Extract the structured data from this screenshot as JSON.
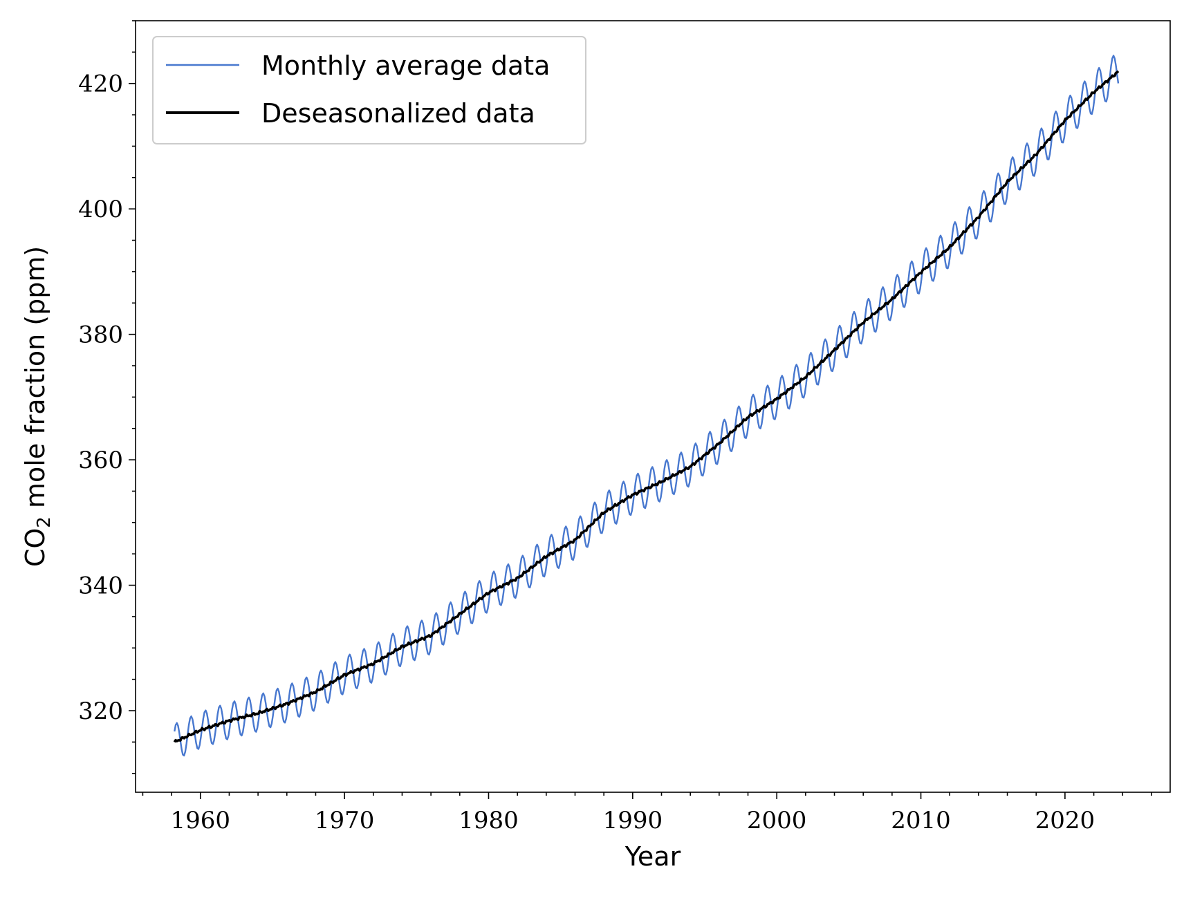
{
  "chart_data": {
    "type": "line",
    "xlabel": "Year",
    "ylabel": {
      "main": "CO",
      "sub": "2",
      "rest": " mole fraction (ppm)"
    },
    "xlim": [
      1955.5,
      2027.3
    ],
    "ylim": [
      307,
      430
    ],
    "x_ticks": [
      1960,
      1970,
      1980,
      1990,
      2000,
      2010,
      2020
    ],
    "x_tick_labels": [
      "1960",
      "1970",
      "1980",
      "1990",
      "2000",
      "2010",
      "2020"
    ],
    "x_minor_step": 2,
    "y_ticks": [
      320,
      340,
      360,
      380,
      400,
      420
    ],
    "y_tick_labels": [
      "320",
      "340",
      "360",
      "380",
      "400",
      "420"
    ],
    "y_minor_step": 5,
    "grid": false,
    "legend_position": "top-left",
    "series": [
      {
        "name": "Monthly average data",
        "color": "#4878cf",
        "seasonal_amplitude": 3.2,
        "x": [
          1958.2,
          1960,
          1962,
          1964,
          1966,
          1968,
          1970,
          1972,
          1974,
          1976,
          1978,
          1980,
          1982,
          1984,
          1986,
          1988,
          1990,
          1992,
          1994,
          1996,
          1998,
          2000,
          2002,
          2004,
          2006,
          2008,
          2010,
          2012,
          2014,
          2016,
          2018,
          2020,
          2022,
          2023.7
        ],
        "y": [
          315.0,
          316.9,
          318.4,
          319.6,
          321.1,
          323.0,
          325.7,
          327.5,
          330.2,
          332.0,
          335.4,
          338.8,
          341.1,
          344.6,
          347.2,
          351.6,
          354.4,
          356.5,
          358.9,
          362.6,
          366.8,
          369.7,
          373.2,
          377.5,
          381.9,
          385.6,
          389.9,
          393.9,
          398.7,
          404.3,
          408.7,
          414.1,
          418.6,
          421.9
        ]
      },
      {
        "name": "Deseasonalized data",
        "color": "#000000",
        "x": [
          1958.2,
          1960,
          1962,
          1964,
          1966,
          1968,
          1970,
          1972,
          1974,
          1976,
          1978,
          1980,
          1982,
          1984,
          1986,
          1988,
          1990,
          1992,
          1994,
          1996,
          1998,
          2000,
          2002,
          2004,
          2006,
          2008,
          2010,
          2012,
          2014,
          2016,
          2018,
          2020,
          2022,
          2023.7
        ],
        "y": [
          315.0,
          316.9,
          318.4,
          319.6,
          321.1,
          323.0,
          325.7,
          327.5,
          330.2,
          332.0,
          335.4,
          338.8,
          341.1,
          344.6,
          347.2,
          351.6,
          354.4,
          356.5,
          358.9,
          362.6,
          366.8,
          369.7,
          373.2,
          377.5,
          381.9,
          385.6,
          389.9,
          393.9,
          398.7,
          404.3,
          408.7,
          414.1,
          418.6,
          421.9
        ]
      }
    ]
  }
}
